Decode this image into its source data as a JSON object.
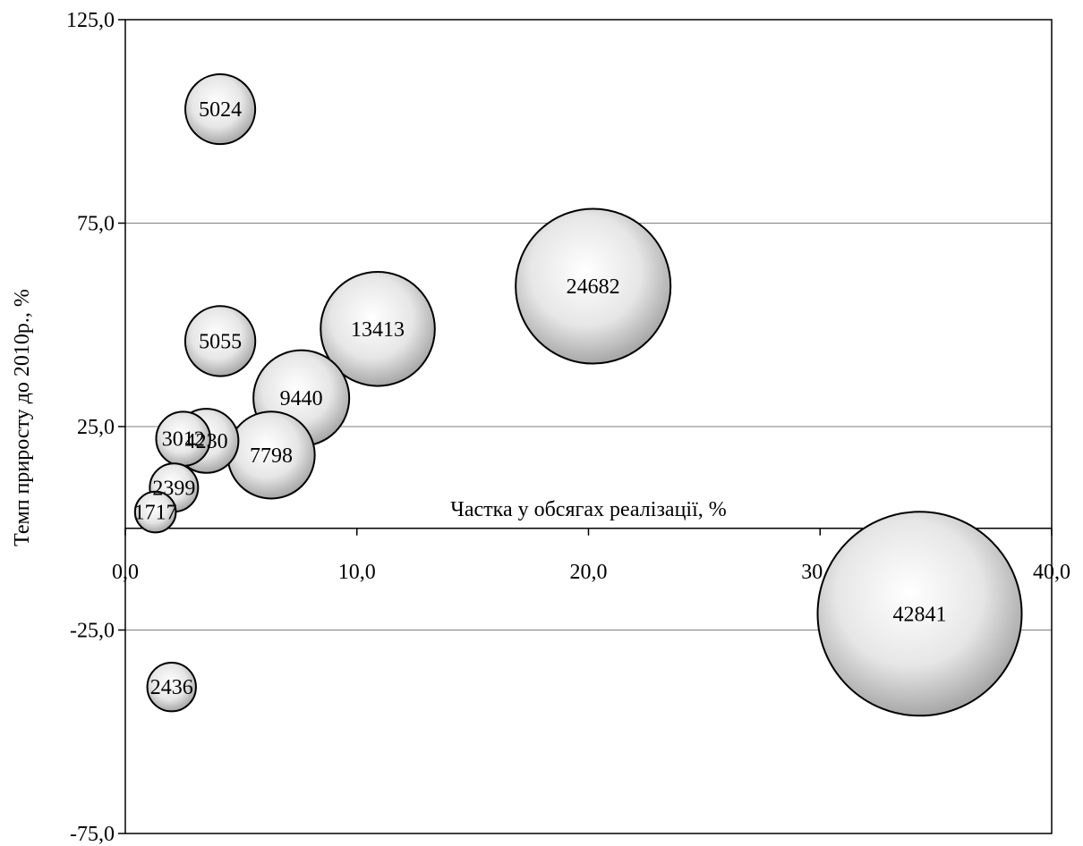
{
  "chart_data": {
    "type": "bubble",
    "title": "",
    "xlabel": "Частка у обсягах реалізації, %",
    "ylabel": "Темп приросту до 2010р., %",
    "xlim": [
      0,
      40
    ],
    "ylim": [
      -75,
      125
    ],
    "x_ticks": [
      0,
      10,
      20,
      30,
      40
    ],
    "y_ticks": [
      125,
      75,
      25,
      -25,
      -75
    ],
    "x_tick_labels": [
      "0,0",
      "10,0",
      "20,0",
      "30,0",
      "40,0"
    ],
    "y_tick_labels": [
      "125,0",
      "75,0",
      "25,0",
      "-25,0",
      "-75,0"
    ],
    "grid": "horizontal",
    "legend": "none",
    "bubble_color": "#e6e6e6",
    "points": [
      {
        "x": 4.1,
        "y": 103,
        "size": 5024,
        "label": "5024"
      },
      {
        "x": 4.1,
        "y": 46,
        "size": 5055,
        "label": "5055"
      },
      {
        "x": 10.9,
        "y": 49,
        "size": 13413,
        "label": "13413"
      },
      {
        "x": 20.2,
        "y": 59.5,
        "size": 24682,
        "label": "24682"
      },
      {
        "x": 7.6,
        "y": 32,
        "size": 9440,
        "label": "9440"
      },
      {
        "x": 3.5,
        "y": 21.5,
        "size": 4230,
        "label": "4230"
      },
      {
        "x": 2.5,
        "y": 22,
        "size": 3012,
        "label": "3012"
      },
      {
        "x": 6.3,
        "y": 18,
        "size": 7798,
        "label": "7798"
      },
      {
        "x": 2.1,
        "y": 10,
        "size": 2399,
        "label": "2399"
      },
      {
        "x": 1.3,
        "y": 4,
        "size": 1717,
        "label": "1717"
      },
      {
        "x": 34.3,
        "y": -21,
        "size": 42841,
        "label": "42841"
      },
      {
        "x": 2.0,
        "y": -39,
        "size": 2436,
        "label": "2436"
      }
    ]
  }
}
